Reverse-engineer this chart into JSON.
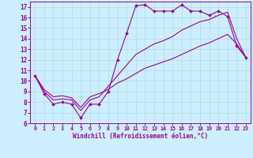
{
  "xlabel": "Windchill (Refroidissement éolien,°C)",
  "bg_color": "#cceeff",
  "line_color": "#990099",
  "xlim": [
    -0.5,
    23.5
  ],
  "ylim": [
    6,
    17.5
  ],
  "xticks": [
    0,
    1,
    2,
    3,
    4,
    5,
    6,
    7,
    8,
    9,
    10,
    11,
    12,
    13,
    14,
    15,
    16,
    17,
    18,
    19,
    20,
    21,
    22,
    23
  ],
  "yticks": [
    6,
    7,
    8,
    9,
    10,
    11,
    12,
    13,
    14,
    15,
    16,
    17
  ],
  "line1_x": [
    0,
    1,
    2,
    3,
    4,
    5,
    6,
    7,
    8,
    9,
    10,
    11,
    12,
    13,
    14,
    15,
    16,
    17,
    18,
    19,
    20,
    21,
    22,
    23
  ],
  "line1_y": [
    10.5,
    8.8,
    7.8,
    8.0,
    7.8,
    6.5,
    7.8,
    7.8,
    9.0,
    12.0,
    14.5,
    17.1,
    17.2,
    16.6,
    16.6,
    16.6,
    17.2,
    16.6,
    16.6,
    16.2,
    16.6,
    16.1,
    13.3,
    12.2
  ],
  "line2_x": [
    0,
    1,
    2,
    3,
    4,
    5,
    6,
    7,
    8,
    9,
    10,
    11,
    12,
    13,
    14,
    15,
    16,
    17,
    18,
    19,
    20,
    21,
    22,
    23
  ],
  "line2_y": [
    10.5,
    9.0,
    8.2,
    8.3,
    8.2,
    7.2,
    8.2,
    8.5,
    9.5,
    10.5,
    11.5,
    12.5,
    13.0,
    13.5,
    13.8,
    14.2,
    14.8,
    15.2,
    15.6,
    15.8,
    16.2,
    16.5,
    14.0,
    12.2
  ],
  "line3_x": [
    0,
    1,
    2,
    3,
    4,
    5,
    6,
    7,
    8,
    9,
    10,
    11,
    12,
    13,
    14,
    15,
    16,
    17,
    18,
    19,
    20,
    21,
    22,
    23
  ],
  "line3_y": [
    10.5,
    9.2,
    8.5,
    8.6,
    8.4,
    7.5,
    8.5,
    8.8,
    9.2,
    9.8,
    10.2,
    10.7,
    11.2,
    11.5,
    11.8,
    12.1,
    12.5,
    12.9,
    13.3,
    13.6,
    14.0,
    14.4,
    13.5,
    12.2
  ]
}
